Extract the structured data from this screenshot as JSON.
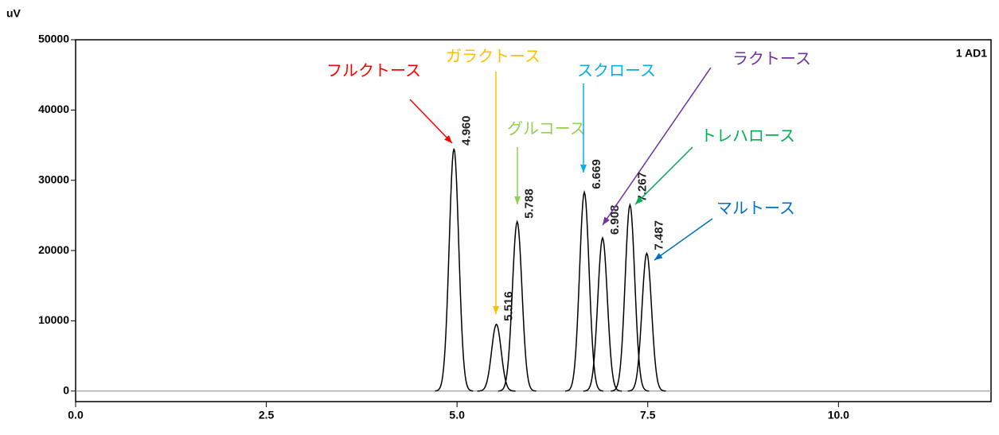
{
  "chart_data": {
    "type": "chromatogram",
    "y_label": "uV",
    "channel_label": "1 AD1",
    "xlim": [
      0,
      12
    ],
    "ylim": [
      -1500,
      50000
    ],
    "xticks": [
      {
        "value": 0,
        "label": "0.0"
      },
      {
        "value": 2.5,
        "label": "2.5"
      },
      {
        "value": 5,
        "label": "5.0"
      },
      {
        "value": 7.5,
        "label": "7.5"
      },
      {
        "value": 10,
        "label": "10.0"
      }
    ],
    "yticks": [
      0,
      10000,
      20000,
      30000,
      40000,
      50000
    ],
    "line_color": "#000000",
    "peaks": {
      "x": [
        4.96,
        5.516,
        5.788,
        6.669,
        6.908,
        7.267,
        7.487
      ],
      "x_labels": [
        "4.960",
        "5.516",
        "5.788",
        "6.669",
        "6.908",
        "7.267",
        "7.487"
      ],
      "heights": [
        34500,
        9500,
        24100,
        28300,
        21800,
        26500,
        19600
      ],
      "names": [
        "フルクトース",
        "ガラクトース",
        "グルコース",
        "スクロース",
        "ラクトース",
        "トレハロース",
        "マルトース"
      ],
      "colors": [
        "#ff0000",
        "#ffc000",
        "#92d050",
        "#00b0f0",
        "#7030a0",
        "#00b050",
        "#0070c0"
      ]
    }
  }
}
